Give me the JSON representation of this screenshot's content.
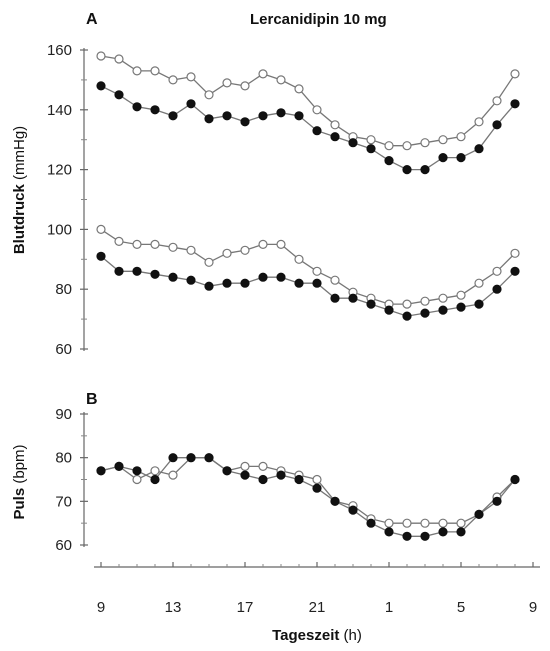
{
  "chart_data": [
    {
      "type": "line",
      "panel_label": "A",
      "title": "Lercanidipin 10 mg",
      "ylabel_bold": "Blutdruck",
      "ylabel_rest": " (mmHg)",
      "yticks": [
        "60",
        "80",
        "100",
        "120",
        "140",
        "160"
      ],
      "ylim": [
        60,
        160
      ],
      "x": [
        9,
        10,
        11,
        12,
        13,
        14,
        15,
        16,
        17,
        18,
        19,
        20,
        21,
        22,
        23,
        24,
        25,
        26,
        27,
        28,
        29,
        30,
        31,
        32
      ],
      "series": [
        {
          "marker": "open",
          "values": [
            158,
            157,
            153,
            153,
            150,
            151,
            145,
            149,
            148,
            152,
            150,
            147,
            140,
            135,
            131,
            130,
            128,
            128,
            129,
            130,
            131,
            136,
            143,
            152
          ]
        },
        {
          "marker": "filled",
          "values": [
            148,
            145,
            141,
            140,
            138,
            142,
            137,
            138,
            136,
            138,
            139,
            138,
            133,
            131,
            129,
            127,
            123,
            120,
            120,
            124,
            124,
            127,
            135,
            142
          ]
        },
        {
          "marker": "open",
          "values": [
            100,
            96,
            95,
            95,
            94,
            93,
            89,
            92,
            93,
            95,
            95,
            90,
            86,
            83,
            79,
            77,
            75,
            75,
            76,
            77,
            78,
            82,
            86,
            92
          ]
        },
        {
          "marker": "filled",
          "values": [
            91,
            86,
            86,
            85,
            84,
            83,
            81,
            82,
            82,
            84,
            84,
            82,
            82,
            77,
            77,
            75,
            73,
            71,
            72,
            73,
            74,
            75,
            80,
            86
          ]
        }
      ]
    },
    {
      "type": "line",
      "panel_label": "B",
      "ylabel_bold": "Puls",
      "ylabel_rest": " (bpm)",
      "yticks": [
        "60",
        "70",
        "80",
        "90"
      ],
      "ylim": [
        60,
        90
      ],
      "xlabel_bold": "Tageszeit",
      "xlabel_rest": " (h)",
      "xticks": [
        "9",
        "13",
        "17",
        "21",
        "1",
        "5",
        "9"
      ],
      "xtick_positions": [
        9,
        13,
        17,
        21,
        25,
        29,
        33
      ],
      "x": [
        9,
        10,
        11,
        12,
        13,
        14,
        15,
        16,
        17,
        18,
        19,
        20,
        21,
        22,
        23,
        24,
        25,
        26,
        27,
        28,
        29,
        30,
        31,
        32
      ],
      "series": [
        {
          "marker": "open",
          "values": [
            77,
            78,
            75,
            77,
            76,
            80,
            80,
            77,
            78,
            78,
            77,
            76,
            75,
            70,
            69,
            66,
            65,
            65,
            65,
            65,
            65,
            67,
            71,
            75
          ]
        },
        {
          "marker": "filled",
          "values": [
            77,
            78,
            77,
            75,
            80,
            80,
            80,
            77,
            76,
            75,
            76,
            75,
            73,
            70,
            68,
            65,
            63,
            62,
            62,
            63,
            63,
            67,
            70,
            75
          ]
        }
      ]
    }
  ]
}
